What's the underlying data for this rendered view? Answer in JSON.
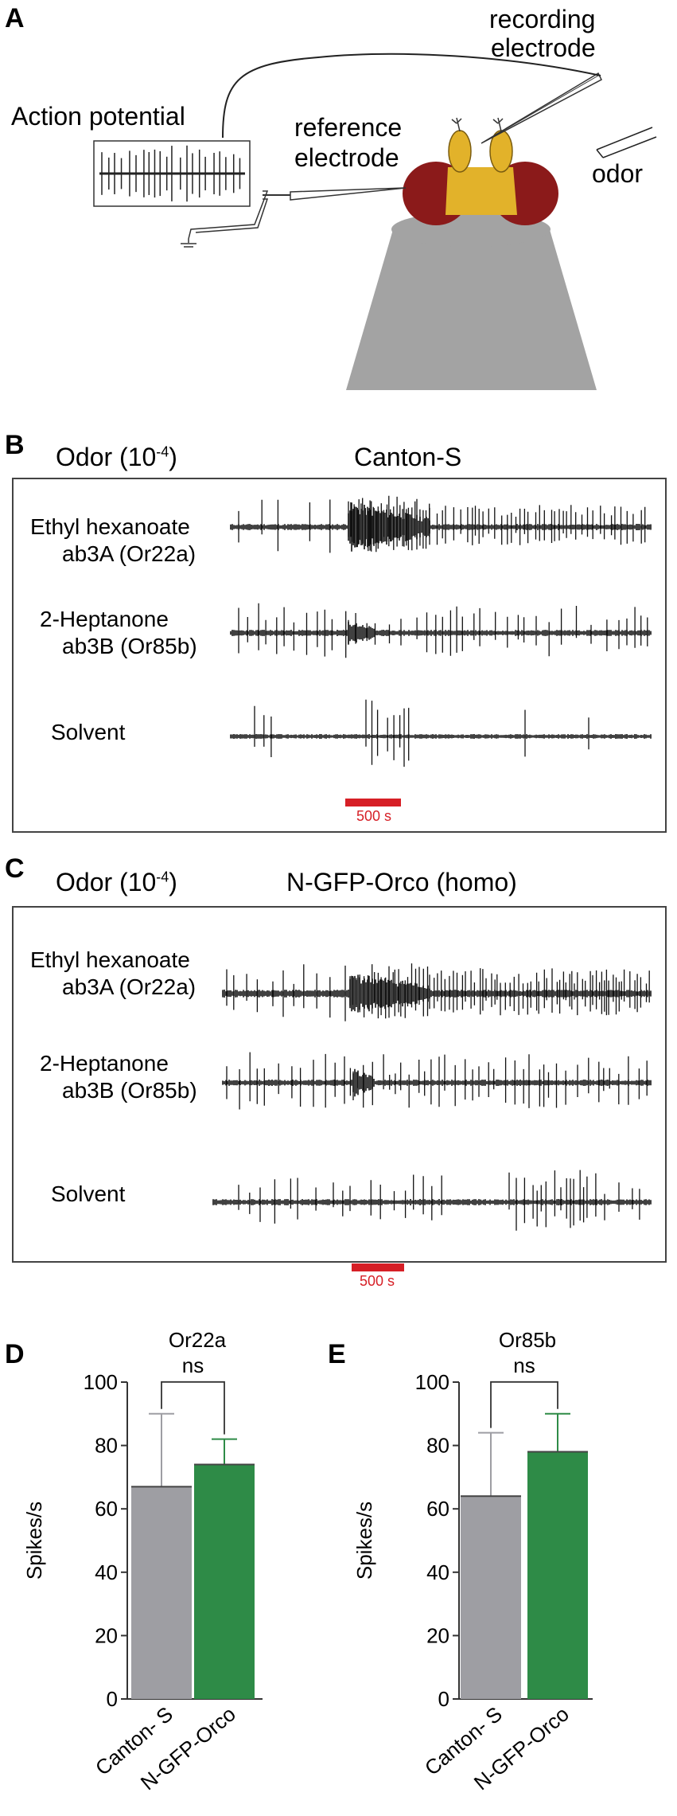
{
  "panelA": {
    "letter": "A",
    "action_potential": "Action potential",
    "recording_electrode": [
      "recording",
      "electrode"
    ],
    "reference_electrode": [
      "reference",
      "electrode"
    ],
    "odor": "odor"
  },
  "panelB": {
    "letter": "B",
    "odor_label": "Odor (10",
    "odor_exp": "-4",
    "odor_close": ")",
    "genotype": "Canton-S",
    "traces": [
      {
        "line1": "Ethyl hexanoate",
        "line2": "ab3A (Or22a)"
      },
      {
        "line1": "2-Heptanone",
        "line2": "ab3B (Or85b)"
      },
      {
        "line1": "Solvent",
        "line2": ""
      }
    ],
    "scale_label": "500 s"
  },
  "panelC": {
    "letter": "C",
    "odor_label": "Odor (10",
    "odor_exp": "-4",
    "odor_close": ")",
    "genotype": "N-GFP-Orco (homo)",
    "traces": [
      {
        "line1": "Ethyl hexanoate",
        "line2": "ab3A (Or22a)"
      },
      {
        "line1": "2-Heptanone",
        "line2": "ab3B (Or85b)"
      },
      {
        "line1": "Solvent",
        "line2": ""
      }
    ],
    "scale_label": "500 s"
  },
  "colors": {
    "grey_bar": "#9e9ea3",
    "green_bar": "#2e8b47",
    "scale_red": "#d61f26",
    "eye_red": "#8b1a1a",
    "head_yellow": "#e2b22a",
    "stand_grey": "#a3a3a3"
  },
  "chart_data": [
    {
      "type": "bar",
      "panel": "D",
      "title": "Or22a",
      "ylabel": "Spikes/s",
      "categories": [
        "Canton- S",
        "N-GFP-Orco"
      ],
      "values": [
        67,
        74
      ],
      "errors": [
        23,
        8
      ],
      "ylim": [
        0,
        100
      ],
      "yticks": [
        "0",
        "20",
        "40",
        "60",
        "80",
        "100"
      ],
      "significance": "ns"
    },
    {
      "type": "bar",
      "panel": "E",
      "title": "Or85b",
      "ylabel": "Spikes/s",
      "categories": [
        "Canton- S",
        "N-GFP-Orco"
      ],
      "values": [
        64,
        78
      ],
      "errors": [
        20,
        12
      ],
      "ylim": [
        0,
        100
      ],
      "yticks": [
        "0",
        "20",
        "40",
        "60",
        "80",
        "100"
      ],
      "significance": "ns"
    }
  ]
}
